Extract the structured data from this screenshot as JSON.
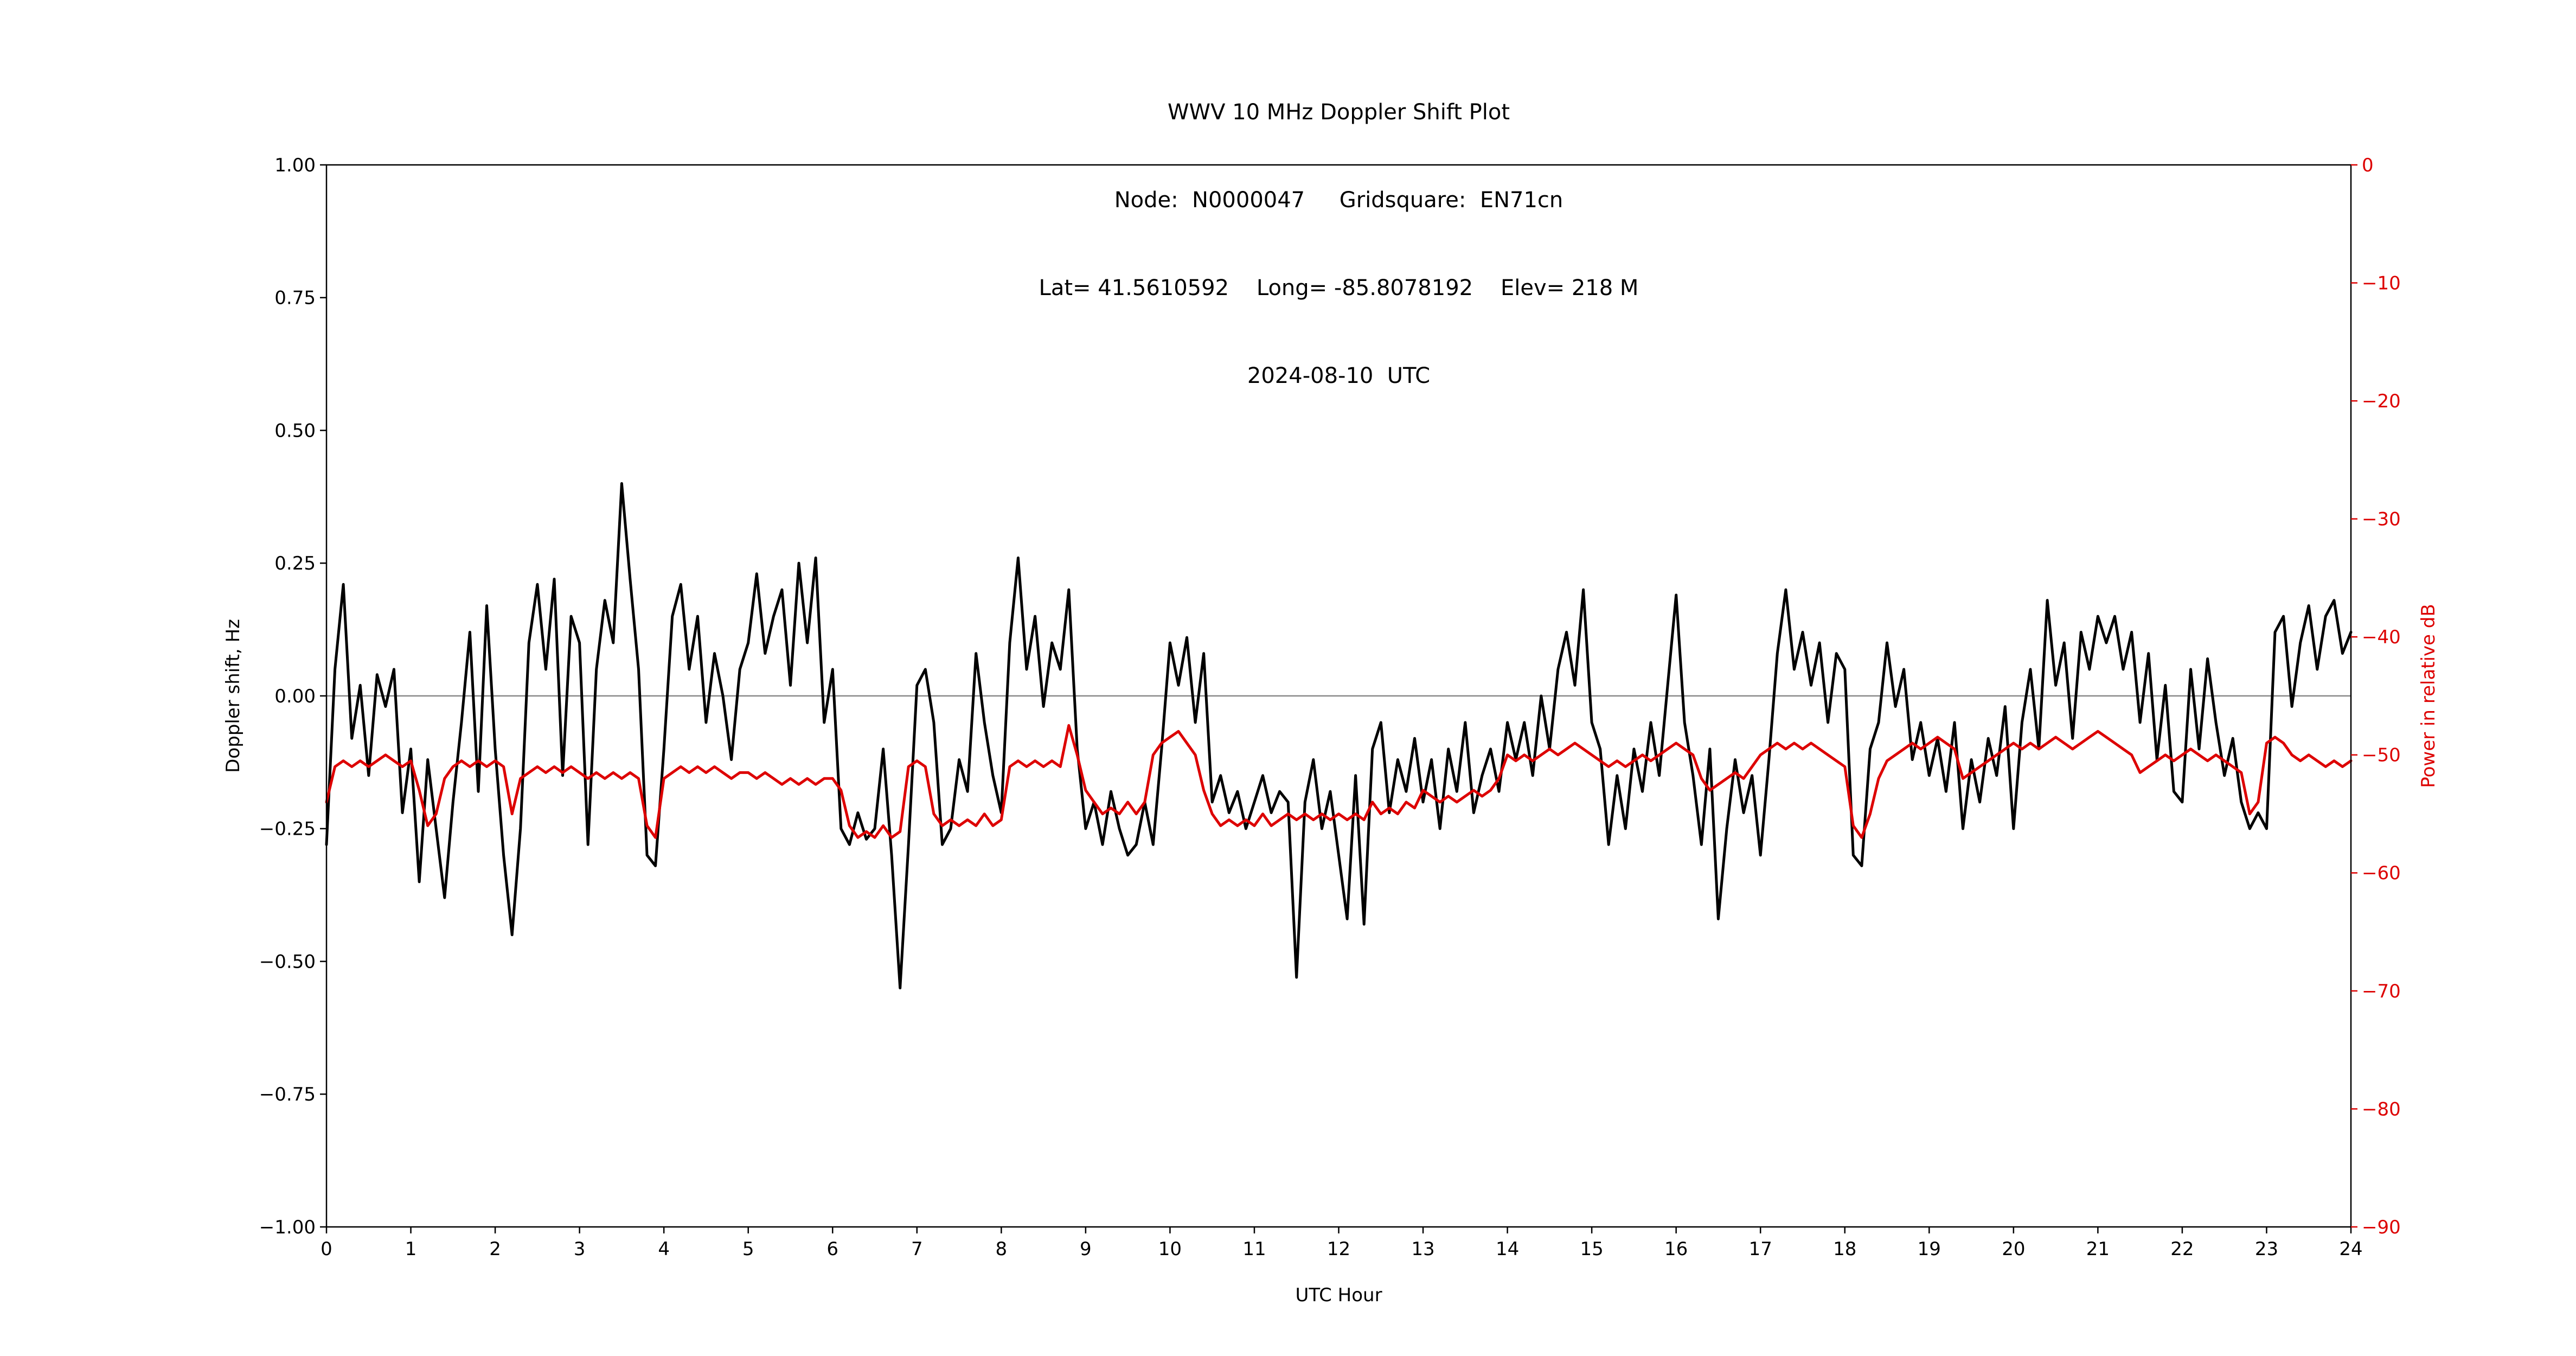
{
  "figure": {
    "background": "#ffffff"
  },
  "title": {
    "line1": "WWV 10 MHz Doppler Shift Plot",
    "line2": "Node:  N0000047     Gridsquare:  EN71cn",
    "line3": "Lat= 41.5610592    Long= -85.8078192    Elev= 218 M",
    "line4": "2024-08-10  UTC"
  },
  "axes": {
    "x_label": "UTC Hour",
    "y_left_label": "Doppler shift, Hz",
    "y_right_label": "Power in relative dB",
    "frame_color": "#000000",
    "zero_line_color": "#888888",
    "y_right_color": "#dd0000"
  },
  "ticks": {
    "x": {
      "values": [
        0,
        1,
        2,
        3,
        4,
        5,
        6,
        7,
        8,
        9,
        10,
        11,
        12,
        13,
        14,
        15,
        16,
        17,
        18,
        19,
        20,
        21,
        22,
        23,
        24
      ],
      "labels": [
        "0",
        "1",
        "2",
        "3",
        "4",
        "5",
        "6",
        "7",
        "8",
        "9",
        "10",
        "11",
        "12",
        "13",
        "14",
        "15",
        "16",
        "17",
        "18",
        "19",
        "20",
        "21",
        "22",
        "23",
        "24"
      ]
    },
    "y_left": {
      "values": [
        1.0,
        0.75,
        0.5,
        0.25,
        0.0,
        -0.25,
        -0.5,
        -0.75,
        -1.0
      ],
      "labels": [
        "1.00",
        "0.75",
        "0.50",
        "0.25",
        "0.00",
        "−0.25",
        "−0.50",
        "−0.75",
        "−1.00"
      ]
    },
    "y_right": {
      "values": [
        0,
        -10,
        -20,
        -30,
        -40,
        -50,
        -60,
        -70,
        -80,
        -90
      ],
      "labels": [
        "0",
        "−10",
        "−20",
        "−30",
        "−40",
        "−50",
        "−60",
        "−70",
        "−80",
        "−90"
      ]
    }
  },
  "chart_data": {
    "type": "line",
    "title": "WWV 10 MHz Doppler Shift Plot",
    "xlabel": "UTC Hour",
    "ylabel_left": "Doppler shift, Hz",
    "ylabel_right": "Power in relative dB",
    "x_range": [
      0,
      24
    ],
    "y_left_range": [
      -1.0,
      1.0
    ],
    "y_right_range": [
      -90,
      0
    ],
    "grid": false,
    "legend": "none",
    "zero_reference_line": 0.0,
    "x_hours_start": 0.0,
    "x_hours_step": 0.1,
    "series": [
      {
        "name": "Doppler shift, Hz",
        "axis": "left",
        "color": "#000000",
        "values": [
          -0.28,
          0.05,
          0.21,
          -0.08,
          0.02,
          -0.15,
          0.04,
          -0.02,
          0.05,
          -0.22,
          -0.1,
          -0.35,
          -0.12,
          -0.25,
          -0.38,
          -0.2,
          -0.05,
          0.12,
          -0.18,
          0.17,
          -0.1,
          -0.3,
          -0.45,
          -0.25,
          0.1,
          0.21,
          0.05,
          0.22,
          -0.15,
          0.15,
          0.1,
          -0.28,
          0.05,
          0.18,
          0.1,
          0.4,
          0.22,
          0.05,
          -0.3,
          -0.32,
          -0.1,
          0.15,
          0.21,
          0.05,
          0.15,
          -0.05,
          0.08,
          0.0,
          -0.12,
          0.05,
          0.1,
          0.23,
          0.08,
          0.15,
          0.2,
          0.02,
          0.25,
          0.1,
          0.26,
          -0.05,
          0.05,
          -0.25,
          -0.28,
          -0.22,
          -0.27,
          -0.25,
          -0.1,
          -0.3,
          -0.55,
          -0.28,
          0.02,
          0.05,
          -0.05,
          -0.28,
          -0.25,
          -0.12,
          -0.18,
          0.08,
          -0.05,
          -0.15,
          -0.22,
          0.1,
          0.26,
          0.05,
          0.15,
          -0.02,
          0.1,
          0.05,
          0.2,
          -0.1,
          -0.25,
          -0.2,
          -0.28,
          -0.18,
          -0.25,
          -0.3,
          -0.28,
          -0.2,
          -0.28,
          -0.1,
          0.1,
          0.02,
          0.11,
          -0.05,
          0.08,
          -0.2,
          -0.15,
          -0.22,
          -0.18,
          -0.25,
          -0.2,
          -0.15,
          -0.22,
          -0.18,
          -0.2,
          -0.53,
          -0.2,
          -0.12,
          -0.25,
          -0.18,
          -0.3,
          -0.42,
          -0.15,
          -0.43,
          -0.1,
          -0.05,
          -0.22,
          -0.12,
          -0.18,
          -0.08,
          -0.2,
          -0.12,
          -0.25,
          -0.1,
          -0.18,
          -0.05,
          -0.22,
          -0.15,
          -0.1,
          -0.18,
          -0.05,
          -0.12,
          -0.05,
          -0.15,
          0.0,
          -0.1,
          0.05,
          0.12,
          0.02,
          0.2,
          -0.05,
          -0.1,
          -0.28,
          -0.15,
          -0.25,
          -0.1,
          -0.18,
          -0.05,
          -0.15,
          0.02,
          0.19,
          -0.05,
          -0.15,
          -0.28,
          -0.1,
          -0.42,
          -0.25,
          -0.12,
          -0.22,
          -0.15,
          -0.3,
          -0.12,
          0.08,
          0.2,
          0.05,
          0.12,
          0.02,
          0.1,
          -0.05,
          0.08,
          0.05,
          -0.3,
          -0.32,
          -0.1,
          -0.05,
          0.1,
          -0.02,
          0.05,
          -0.12,
          -0.05,
          -0.15,
          -0.08,
          -0.18,
          -0.05,
          -0.25,
          -0.12,
          -0.2,
          -0.08,
          -0.15,
          -0.02,
          -0.25,
          -0.05,
          0.05,
          -0.1,
          0.18,
          0.02,
          0.1,
          -0.08,
          0.12,
          0.05,
          0.15,
          0.1,
          0.15,
          0.05,
          0.12,
          -0.05,
          0.08,
          -0.12,
          0.02,
          -0.18,
          -0.2,
          0.05,
          -0.1,
          0.07,
          -0.05,
          -0.15,
          -0.08,
          -0.2,
          -0.25,
          -0.22,
          -0.25,
          0.12,
          0.15,
          -0.02,
          0.1,
          0.17,
          0.05,
          0.15,
          0.18,
          0.08,
          0.12
        ]
      },
      {
        "name": "Power in relative dB",
        "axis": "right",
        "color": "#dd0000",
        "values": [
          -54,
          -51,
          -50.5,
          -51,
          -50.5,
          -51,
          -50.5,
          -50,
          -50.5,
          -51,
          -50.5,
          -53,
          -56,
          -55,
          -52,
          -51,
          -50.5,
          -51,
          -50.5,
          -51,
          -50.5,
          -51,
          -55,
          -52,
          -51.5,
          -51,
          -51.5,
          -51,
          -51.5,
          -51,
          -51.5,
          -52,
          -51.5,
          -52,
          -51.5,
          -52,
          -51.5,
          -52,
          -56,
          -57,
          -52,
          -51.5,
          -51,
          -51.5,
          -51,
          -51.5,
          -51,
          -51.5,
          -52,
          -51.5,
          -51.5,
          -52,
          -51.5,
          -52,
          -52.5,
          -52,
          -52.5,
          -52,
          -52.5,
          -52,
          -52,
          -53,
          -56,
          -57,
          -56.5,
          -57,
          -56,
          -57,
          -56.5,
          -51,
          -50.5,
          -51,
          -55,
          -56,
          -55.5,
          -56,
          -55.5,
          -56,
          -55,
          -56,
          -55.5,
          -51,
          -50.5,
          -51,
          -50.5,
          -51,
          -50.5,
          -51,
          -47.5,
          -50,
          -53,
          -54,
          -55,
          -54.5,
          -55,
          -54,
          -55,
          -54,
          -50,
          -49,
          -48.5,
          -48,
          -49,
          -50,
          -53,
          -55,
          -56,
          -55.5,
          -56,
          -55.5,
          -56,
          -55,
          -56,
          -55.5,
          -55,
          -55.5,
          -55,
          -55.5,
          -55,
          -55.5,
          -55,
          -55.5,
          -55,
          -55.5,
          -54,
          -55,
          -54.5,
          -55,
          -54,
          -54.5,
          -53,
          -53.5,
          -54,
          -53.5,
          -54,
          -53.5,
          -53,
          -53.5,
          -53,
          -52,
          -50,
          -50.5,
          -50,
          -50.5,
          -50,
          -49.5,
          -50,
          -49.5,
          -49,
          -49.5,
          -50,
          -50.5,
          -51,
          -50.5,
          -51,
          -50.5,
          -50,
          -50.5,
          -50,
          -49.5,
          -49,
          -49.5,
          -50,
          -52,
          -53,
          -52.5,
          -52,
          -51.5,
          -52,
          -51,
          -50,
          -49.5,
          -49,
          -49.5,
          -49,
          -49.5,
          -49,
          -49.5,
          -50,
          -50.5,
          -51,
          -56,
          -57,
          -55,
          -52,
          -50.5,
          -50,
          -49.5,
          -49,
          -49.5,
          -49,
          -48.5,
          -49,
          -49.5,
          -52,
          -51.5,
          -51,
          -50.5,
          -50,
          -49.5,
          -49,
          -49.5,
          -49,
          -49.5,
          -49,
          -48.5,
          -49,
          -49.5,
          -49,
          -48.5,
          -48,
          -48.5,
          -49,
          -49.5,
          -50,
          -51.5,
          -51,
          -50.5,
          -50,
          -50.5,
          -50,
          -49.5,
          -50,
          -50.5,
          -50,
          -50.5,
          -51,
          -51.5,
          -55,
          -54,
          -49,
          -48.5,
          -49,
          -50,
          -50.5,
          -50,
          -50.5,
          -51,
          -50.5,
          -51,
          -50.5
        ]
      }
    ]
  }
}
